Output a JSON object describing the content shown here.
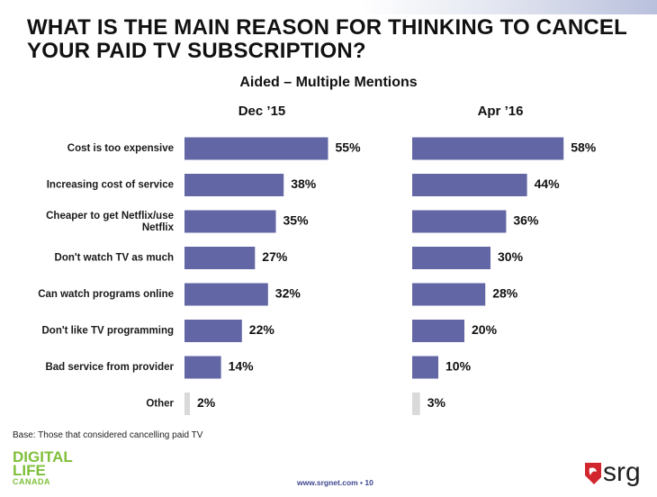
{
  "title_line1": "WHAT IS THE MAIN REASON FOR THINKING TO CANCEL",
  "title_line2": "YOUR PAID TV SUBSCRIPTION?",
  "subtitle": "Aided – Multiple Mentions",
  "base_note": "Base:  Those that considered cancelling paid TV",
  "footer_url": "www.srgnet.com  ▪  10",
  "logo_left": {
    "line1": "DIGITAL",
    "line2": "LIFE",
    "line3": "CANADA"
  },
  "logo_right": {
    "text": "srg"
  },
  "colors": {
    "bar": "#6266a4",
    "other_bar": "#d9d9d9",
    "accent": "#7fbf3a",
    "logo_red": "#d2262e"
  },
  "chart_data": {
    "type": "bar",
    "orientation": "horizontal",
    "categories": [
      "Cost is too expensive",
      "Increasing cost of service",
      "Cheaper to get Netflix/use Netflix",
      "Don't watch TV as much",
      "Can watch programs online",
      "Don't like TV programming",
      "Bad service from provider",
      "Other"
    ],
    "panels": [
      {
        "name": "Dec ’15",
        "values": [
          55,
          38,
          35,
          27,
          32,
          22,
          14,
          2
        ],
        "labels": [
          "55%",
          "38%",
          "35%",
          "27%",
          "32%",
          "22%",
          "14%",
          "2%"
        ]
      },
      {
        "name": "Apr ’16",
        "values": [
          58,
          44,
          36,
          30,
          28,
          20,
          10,
          3
        ],
        "labels": [
          "58%",
          "44%",
          "36%",
          "30%",
          "28%",
          "20%",
          "10%",
          "3%"
        ]
      }
    ],
    "xlim": [
      0,
      100
    ],
    "unit": "%"
  }
}
